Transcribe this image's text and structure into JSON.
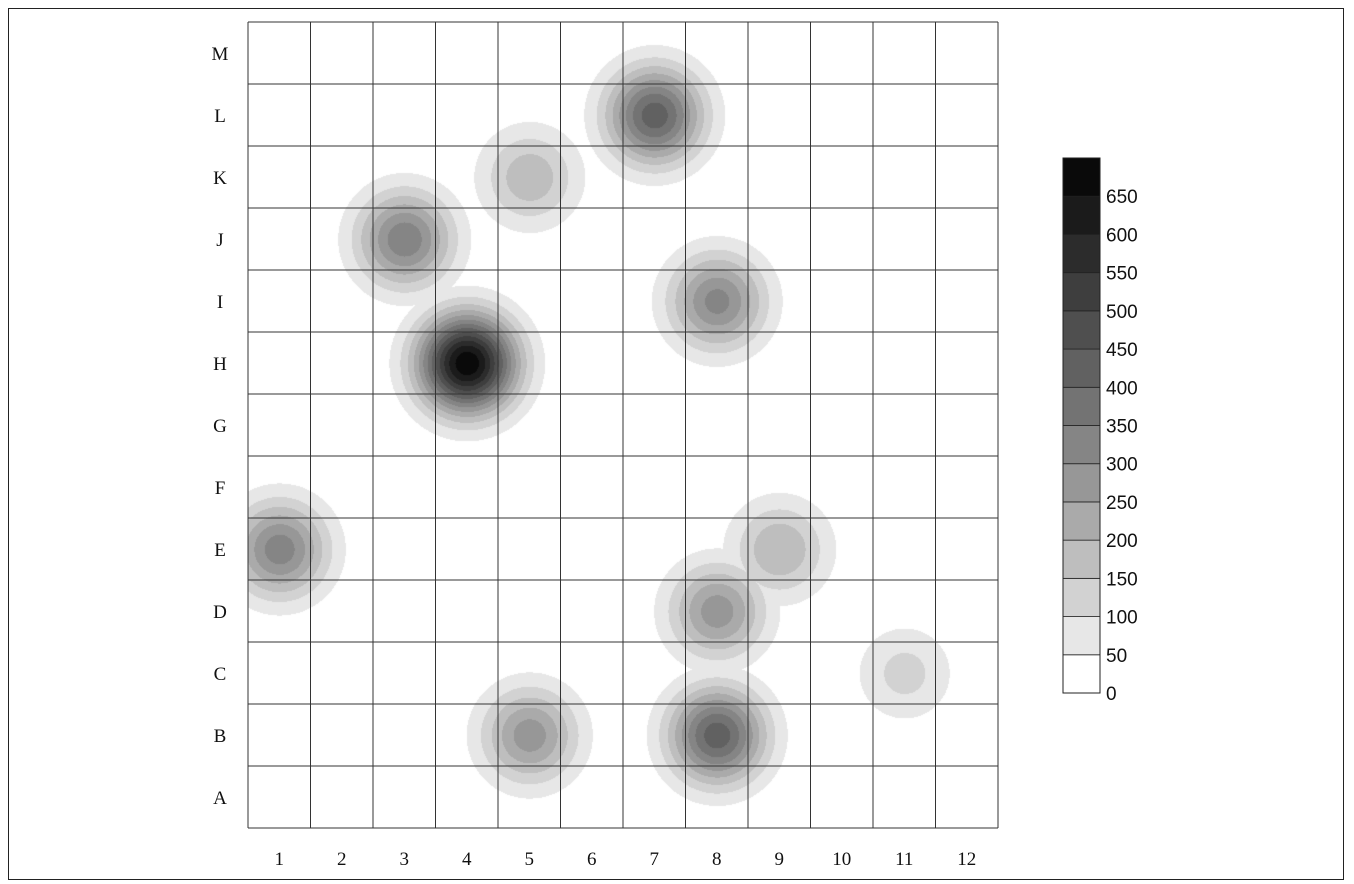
{
  "chart_data": {
    "type": "heatmap",
    "title": "",
    "xlabel": "",
    "ylabel": "",
    "x": [
      "1",
      "2",
      "3",
      "4",
      "5",
      "6",
      "7",
      "8",
      "9",
      "10",
      "11",
      "12"
    ],
    "y": [
      "M",
      "L",
      "K",
      "J",
      "I",
      "H",
      "G",
      "F",
      "E",
      "D",
      "C",
      "B",
      "A"
    ],
    "colorbar": {
      "min": 0,
      "max": 700,
      "ticks": [
        0,
        50,
        100,
        150,
        200,
        250,
        300,
        350,
        400,
        450,
        500,
        550,
        600,
        650
      ],
      "levels": [
        0,
        50,
        100,
        150,
        200,
        250,
        300,
        350,
        400,
        450,
        500,
        550,
        600,
        650,
        700
      ]
    },
    "hotspots": [
      {
        "col": 4,
        "row": "H",
        "value": 690
      },
      {
        "col": 3,
        "row": "J",
        "value": 340
      },
      {
        "col": 7,
        "row": "L",
        "value": 430
      },
      {
        "col": 8,
        "row": "B",
        "value": 430
      },
      {
        "col": 1,
        "row": "E",
        "value": 330
      },
      {
        "col": 8,
        "row": "I",
        "value": 320
      },
      {
        "col": 8,
        "row": "D",
        "value": 280
      },
      {
        "col": 5,
        "row": "B",
        "value": 280
      },
      {
        "col": 9,
        "row": "E",
        "value": 200
      },
      {
        "col": 5,
        "row": "K",
        "value": 190
      },
      {
        "col": 11,
        "row": "C",
        "value": 120
      }
    ],
    "grid": true,
    "legend": "right"
  }
}
